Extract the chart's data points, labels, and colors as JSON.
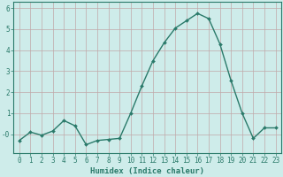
{
  "x": [
    0,
    1,
    2,
    3,
    4,
    5,
    6,
    7,
    8,
    9,
    10,
    11,
    12,
    13,
    14,
    15,
    16,
    17,
    18,
    19,
    20,
    21,
    22,
    23
  ],
  "y": [
    -0.3,
    0.1,
    -0.05,
    0.15,
    0.65,
    0.4,
    -0.5,
    -0.3,
    -0.25,
    -0.2,
    1.0,
    2.3,
    3.5,
    4.35,
    5.05,
    5.4,
    5.75,
    5.5,
    4.3,
    2.55,
    1.0,
    -0.2,
    0.3,
    0.3
  ],
  "line_color": "#2a7a6a",
  "marker": "D",
  "marker_size": 2.0,
  "bg_color": "#ceecea",
  "grid_color": "#c0a8a8",
  "xlabel": "Humidex (Indice chaleur)",
  "xlabel_fontsize": 6.5,
  "ylim": [
    -0.9,
    6.3
  ],
  "xlim": [
    -0.5,
    23.5
  ],
  "yticks": [
    0,
    1,
    2,
    3,
    4,
    5,
    6
  ],
  "ytick_labels": [
    "-0",
    "1",
    "2",
    "3",
    "4",
    "5",
    "6"
  ],
  "xtick_labels": [
    "0",
    "1",
    "2",
    "3",
    "4",
    "5",
    "6",
    "7",
    "8",
    "9",
    "10",
    "11",
    "12",
    "13",
    "14",
    "15",
    "16",
    "17",
    "18",
    "19",
    "20",
    "21",
    "22",
    "23"
  ],
  "tick_fontsize": 5.5,
  "line_width": 1.0
}
